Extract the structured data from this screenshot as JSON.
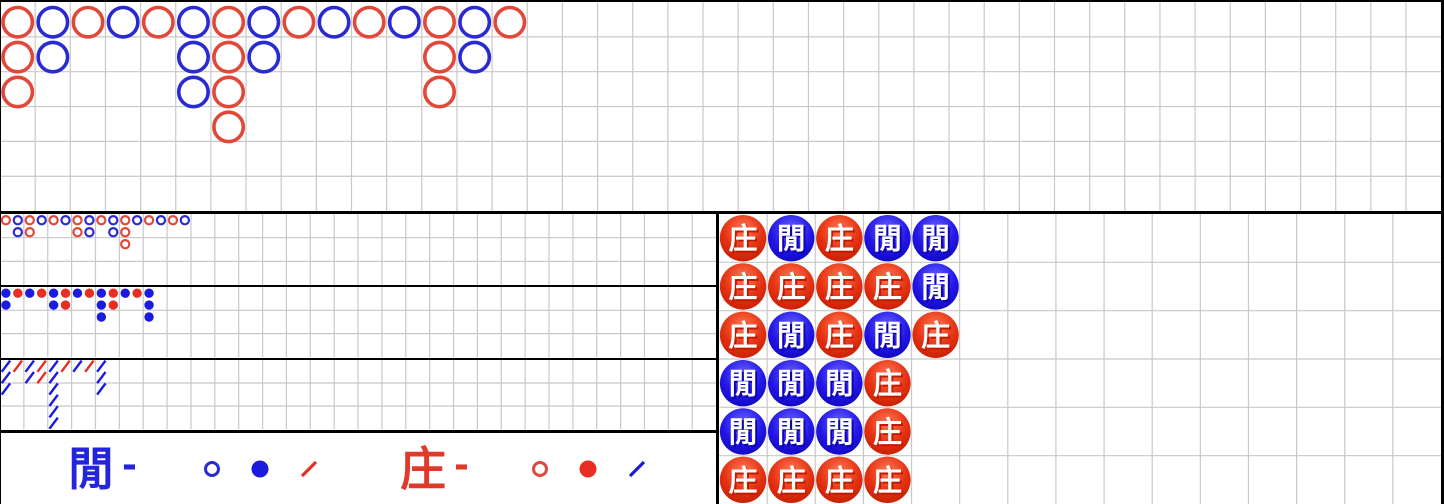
{
  "colors": {
    "red_ring": "#e0493a",
    "blue_ring": "#2a2ad2",
    "red_solid": "#e82e22",
    "blue_solid": "#1b1bdf",
    "legend_red": "#e0392a",
    "legend_blue": "#2424dd",
    "bead_red_light": "#ff7a55",
    "bead_red_mid": "#e43112",
    "bead_red_dark": "#bf1b00",
    "bead_blue_light": "#6b66ff",
    "bead_blue_mid": "#2217e6",
    "bead_blue_dark": "#0d04b5",
    "grid_line": "#c8c8c8",
    "section_line": "#000000"
  },
  "big_road": {
    "grid_rows": 6,
    "grid_cols": 41,
    "columns": [
      {
        "color": "red",
        "count": 3
      },
      {
        "color": "blue",
        "count": 2
      },
      {
        "color": "red",
        "count": 1
      },
      {
        "color": "blue",
        "count": 1
      },
      {
        "color": "red",
        "count": 1
      },
      {
        "color": "blue",
        "count": 3
      },
      {
        "color": "red",
        "count": 4
      },
      {
        "color": "blue",
        "count": 2
      },
      {
        "color": "red",
        "count": 1
      },
      {
        "color": "blue",
        "count": 1
      },
      {
        "color": "red",
        "count": 1
      },
      {
        "color": "blue",
        "count": 1
      },
      {
        "color": "red",
        "count": 3
      },
      {
        "color": "blue",
        "count": 2
      },
      {
        "color": "red",
        "count": 1
      }
    ]
  },
  "big_eye_road": {
    "grid_rows": 3,
    "grid_cols": 30,
    "columns": [
      {
        "color": "red",
        "count": 1
      },
      {
        "color": "blue",
        "count": 2
      },
      {
        "color": "red",
        "count": 2
      },
      {
        "color": "blue",
        "count": 1
      },
      {
        "color": "red",
        "count": 1
      },
      {
        "color": "blue",
        "count": 1
      },
      {
        "color": "red",
        "count": 2
      },
      {
        "color": "blue",
        "count": 2
      },
      {
        "color": "red",
        "count": 1
      },
      {
        "color": "blue",
        "count": 2
      },
      {
        "color": "red",
        "count": 3
      },
      {
        "color": "blue",
        "count": 1
      },
      {
        "color": "red",
        "count": 1
      },
      {
        "color": "blue",
        "count": 1
      },
      {
        "color": "red",
        "count": 1
      },
      {
        "color": "blue",
        "count": 1
      }
    ]
  },
  "small_road": {
    "grid_rows": 3,
    "grid_cols": 30,
    "columns": [
      {
        "color": "blue",
        "count": 2
      },
      {
        "color": "red",
        "count": 1
      },
      {
        "color": "blue",
        "count": 1
      },
      {
        "color": "red",
        "count": 1
      },
      {
        "color": "blue",
        "count": 2
      },
      {
        "color": "red",
        "count": 2
      },
      {
        "color": "blue",
        "count": 1
      },
      {
        "color": "red",
        "count": 1
      },
      {
        "color": "blue",
        "count": 3
      },
      {
        "color": "red",
        "count": 2
      },
      {
        "color": "blue",
        "count": 1
      },
      {
        "color": "red",
        "count": 1
      },
      {
        "color": "blue",
        "count": 3
      }
    ]
  },
  "cockroach_road": {
    "grid_rows": 3,
    "grid_cols": 30,
    "columns": [
      {
        "color": "blue",
        "count": 3
      },
      {
        "color": "red",
        "count": 1
      },
      {
        "color": "blue",
        "count": 2
      },
      {
        "color": "red",
        "count": 2
      },
      {
        "color": "blue",
        "count": 6
      },
      {
        "color": "red",
        "count": 1
      },
      {
        "color": "blue",
        "count": 1
      },
      {
        "color": "red",
        "count": 1
      },
      {
        "color": "blue",
        "count": 3
      }
    ]
  },
  "bead_plate": {
    "grid_rows": 6,
    "grid_cols": 15,
    "labels": {
      "banker": "庄",
      "player": "閒"
    },
    "columns": [
      [
        "banker",
        "banker",
        "banker",
        "player",
        "player",
        "banker"
      ],
      [
        "player",
        "banker",
        "player",
        "player",
        "player",
        "banker"
      ],
      [
        "banker",
        "banker",
        "banker",
        "player",
        "player",
        "banker"
      ],
      [
        "player",
        "banker",
        "player",
        "banker",
        "banker",
        "banker"
      ],
      [
        "player",
        "player",
        "banker"
      ]
    ]
  },
  "legend": {
    "player": {
      "label": "閒",
      "dash": "-",
      "circle_color": "blue",
      "slash_color": "red"
    },
    "banker": {
      "label": "庄",
      "dash": "-",
      "circle_color": "red",
      "slash_color": "blue"
    }
  }
}
